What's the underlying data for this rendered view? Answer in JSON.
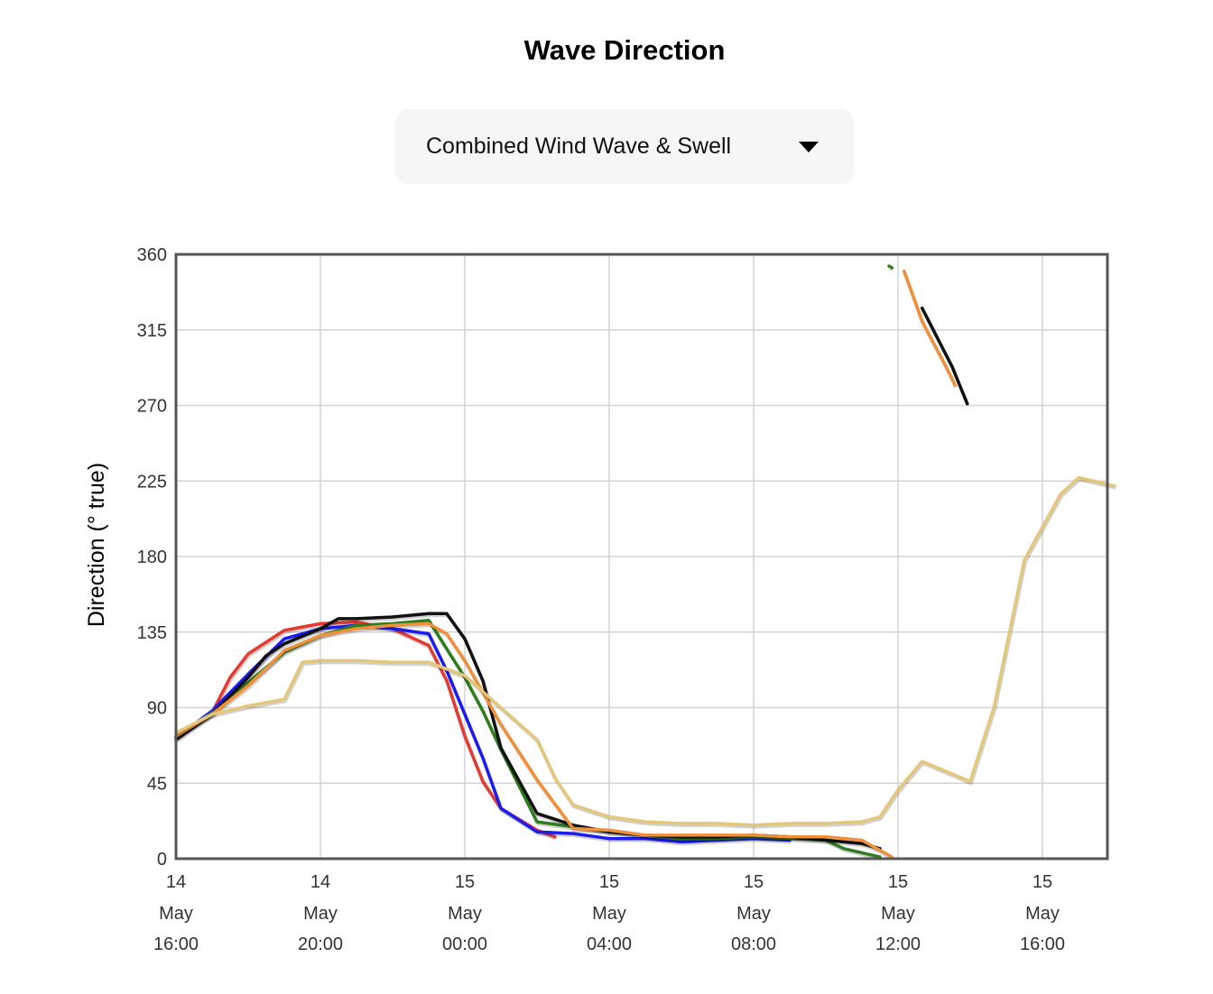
{
  "header": {
    "title": "Wave Direction"
  },
  "selector": {
    "selected": "Combined Wind Wave & Swell",
    "icon": "caret-down-icon"
  },
  "chart_data": {
    "type": "line",
    "title": "Wave Direction",
    "ylabel": "Direction (° true)",
    "xlabel": "",
    "ylim": [
      0,
      360
    ],
    "xlim": [
      "14 May 16:00",
      "15 May 18:30"
    ],
    "grid": true,
    "y_ticks": [
      "0",
      "45",
      "90",
      "135",
      "180",
      "225",
      "270",
      "315",
      "360"
    ],
    "x_ticks": [
      {
        "day": "14",
        "month": "May",
        "time": "16:00"
      },
      {
        "day": "14",
        "month": "May",
        "time": "20:00"
      },
      {
        "day": "15",
        "month": "May",
        "time": "00:00"
      },
      {
        "day": "15",
        "month": "May",
        "time": "04:00"
      },
      {
        "day": "15",
        "month": "May",
        "time": "08:00"
      },
      {
        "day": "15",
        "month": "May",
        "time": "12:00"
      },
      {
        "day": "15",
        "month": "May",
        "time": "16:00"
      }
    ],
    "series": [
      {
        "color": "#e53a2f",
        "segments": [
          [
            [
              "14 May 16:00",
              73
            ],
            [
              "14 May 17:00",
              87
            ],
            [
              "14 May 17:30",
              108
            ],
            [
              "14 May 18:00",
              122
            ],
            [
              "14 May 19:00",
              136
            ],
            [
              "14 May 20:00",
              140
            ],
            [
              "14 May 21:00",
              141
            ],
            [
              "14 May 22:00",
              137
            ],
            [
              "14 May 23:00",
              127
            ],
            [
              "14 May 23:30",
              106
            ],
            [
              "15 May 00:00",
              73
            ],
            [
              "15 May 00:30",
              46
            ],
            [
              "15 May 01:00",
              30
            ],
            [
              "15 May 02:00",
              17
            ],
            [
              "15 May 02:30",
              13
            ]
          ]
        ]
      },
      {
        "color": "#1c1cf0",
        "segments": [
          [
            [
              "14 May 16:00",
              72
            ],
            [
              "14 May 17:00",
              88
            ],
            [
              "14 May 18:00",
              110
            ],
            [
              "14 May 19:00",
              131
            ],
            [
              "14 May 20:00",
              137
            ],
            [
              "14 May 21:00",
              139
            ],
            [
              "14 May 22:00",
              137
            ],
            [
              "14 May 23:00",
              134
            ],
            [
              "14 May 23:30",
              112
            ],
            [
              "15 May 00:00",
              86
            ],
            [
              "15 May 00:30",
              60
            ],
            [
              "15 May 01:00",
              30
            ],
            [
              "15 May 02:00",
              16
            ],
            [
              "15 May 03:00",
              15
            ],
            [
              "15 May 04:00",
              12
            ],
            [
              "15 May 05:00",
              12
            ],
            [
              "15 May 06:00",
              10
            ],
            [
              "15 May 07:00",
              11
            ],
            [
              "15 May 08:00",
              12
            ],
            [
              "15 May 09:00",
              11
            ]
          ]
        ]
      },
      {
        "color": "#2e7d1e",
        "segments": [
          [
            [
              "14 May 16:00",
              72
            ],
            [
              "14 May 17:00",
              87
            ],
            [
              "14 May 18:00",
              105
            ],
            [
              "14 May 19:00",
              123
            ],
            [
              "14 May 20:00",
              133
            ],
            [
              "14 May 21:00",
              139
            ],
            [
              "14 May 22:00",
              140
            ],
            [
              "14 May 23:00",
              142
            ],
            [
              "15 May 00:00",
              108
            ],
            [
              "15 May 00:30",
              88
            ],
            [
              "15 May 01:00",
              65
            ],
            [
              "15 May 02:00",
              22
            ],
            [
              "15 May 03:00",
              19
            ],
            [
              "15 May 04:00",
              16
            ],
            [
              "15 May 05:00",
              14
            ],
            [
              "15 May 06:00",
              12
            ],
            [
              "15 May 07:00",
              12
            ],
            [
              "15 May 08:00",
              13
            ],
            [
              "15 May 09:00",
              12
            ],
            [
              "15 May 10:00",
              11
            ],
            [
              "15 May 10:30",
              6
            ],
            [
              "15 May 11:30",
              1
            ]
          ],
          [
            [
              "15 May 11:45",
              353
            ],
            [
              "15 May 11:50",
              352
            ]
          ]
        ]
      },
      {
        "color": "#111111",
        "segments": [
          [
            [
              "14 May 16:00",
              71
            ],
            [
              "14 May 17:00",
              86
            ],
            [
              "14 May 18:00",
              108
            ],
            [
              "14 May 18:30",
              121
            ],
            [
              "14 May 19:00",
              128
            ],
            [
              "14 May 20:00",
              137
            ],
            [
              "14 May 20:30",
              143
            ],
            [
              "14 May 21:00",
              143
            ],
            [
              "14 May 22:00",
              144
            ],
            [
              "14 May 23:00",
              146
            ],
            [
              "14 May 23:30",
              146
            ],
            [
              "15 May 00:00",
              131
            ],
            [
              "15 May 00:30",
              106
            ],
            [
              "15 May 01:00",
              66
            ],
            [
              "15 May 02:00",
              27
            ],
            [
              "15 May 03:00",
              20
            ],
            [
              "15 May 04:00",
              16
            ],
            [
              "15 May 05:00",
              14
            ],
            [
              "15 May 06:00",
              13
            ],
            [
              "15 May 07:00",
              13
            ],
            [
              "15 May 08:00",
              14
            ],
            [
              "15 May 09:00",
              13
            ],
            [
              "15 May 10:00",
              11
            ],
            [
              "15 May 11:00",
              9
            ],
            [
              "15 May 11:30",
              6
            ]
          ],
          [
            [
              "15 May 12:40",
              328
            ],
            [
              "15 May 13:30",
              293
            ],
            [
              "15 May 13:55",
              271
            ]
          ]
        ]
      },
      {
        "color": "#f0903a",
        "segments": [
          [
            [
              "14 May 16:00",
              73
            ],
            [
              "14 May 17:00",
              86
            ],
            [
              "14 May 18:00",
              103
            ],
            [
              "14 May 19:00",
              124
            ],
            [
              "14 May 20:00",
              133
            ],
            [
              "14 May 21:00",
              137
            ],
            [
              "14 May 22:00",
              139
            ],
            [
              "14 May 23:00",
              140
            ],
            [
              "14 May 23:30",
              134
            ],
            [
              "15 May 00:00",
              118
            ],
            [
              "15 May 01:00",
              80
            ],
            [
              "15 May 02:00",
              47
            ],
            [
              "15 May 03:00",
              18
            ],
            [
              "15 May 04:00",
              17
            ],
            [
              "15 May 05:00",
              14
            ],
            [
              "15 May 06:00",
              14
            ],
            [
              "15 May 07:00",
              14
            ],
            [
              "15 May 08:00",
              14
            ],
            [
              "15 May 09:00",
              13
            ],
            [
              "15 May 10:00",
              13
            ],
            [
              "15 May 11:00",
              11
            ],
            [
              "15 May 11:30",
              5
            ],
            [
              "15 May 11:50",
              1
            ]
          ],
          [
            [
              "15 May 12:10",
              350
            ],
            [
              "15 May 12:40",
              320
            ],
            [
              "15 May 13:20",
              293
            ],
            [
              "15 May 13:35",
              282
            ]
          ]
        ]
      },
      {
        "color": "#e3c77a",
        "segments": [
          [
            [
              "14 May 16:00",
              75
            ],
            [
              "14 May 17:00",
              86
            ],
            [
              "14 May 18:00",
              91
            ],
            [
              "14 May 19:00",
              95
            ],
            [
              "14 May 19:30",
              117
            ],
            [
              "14 May 20:00",
              118
            ],
            [
              "14 May 21:00",
              118
            ],
            [
              "14 May 22:00",
              117
            ],
            [
              "14 May 23:00",
              117
            ],
            [
              "15 May 00:00",
              109
            ],
            [
              "15 May 01:00",
              90
            ],
            [
              "15 May 02:00",
              71
            ],
            [
              "15 May 02:30",
              48
            ],
            [
              "15 May 03:00",
              32
            ],
            [
              "15 May 04:00",
              25
            ],
            [
              "15 May 05:00",
              22
            ],
            [
              "15 May 06:00",
              21
            ],
            [
              "15 May 07:00",
              21
            ],
            [
              "15 May 08:00",
              20
            ],
            [
              "15 May 09:00",
              21
            ],
            [
              "15 May 10:00",
              21
            ],
            [
              "15 May 11:00",
              22
            ],
            [
              "15 May 11:30",
              25
            ],
            [
              "15 May 12:00",
              41
            ],
            [
              "15 May 12:40",
              58
            ],
            [
              "15 May 14:00",
              46
            ],
            [
              "15 May 14:40",
              91
            ],
            [
              "15 May 15:30",
              178
            ],
            [
              "15 May 16:30",
              217
            ],
            [
              "15 May 17:00",
              227
            ],
            [
              "15 May 18:00",
              222
            ]
          ]
        ]
      }
    ]
  }
}
